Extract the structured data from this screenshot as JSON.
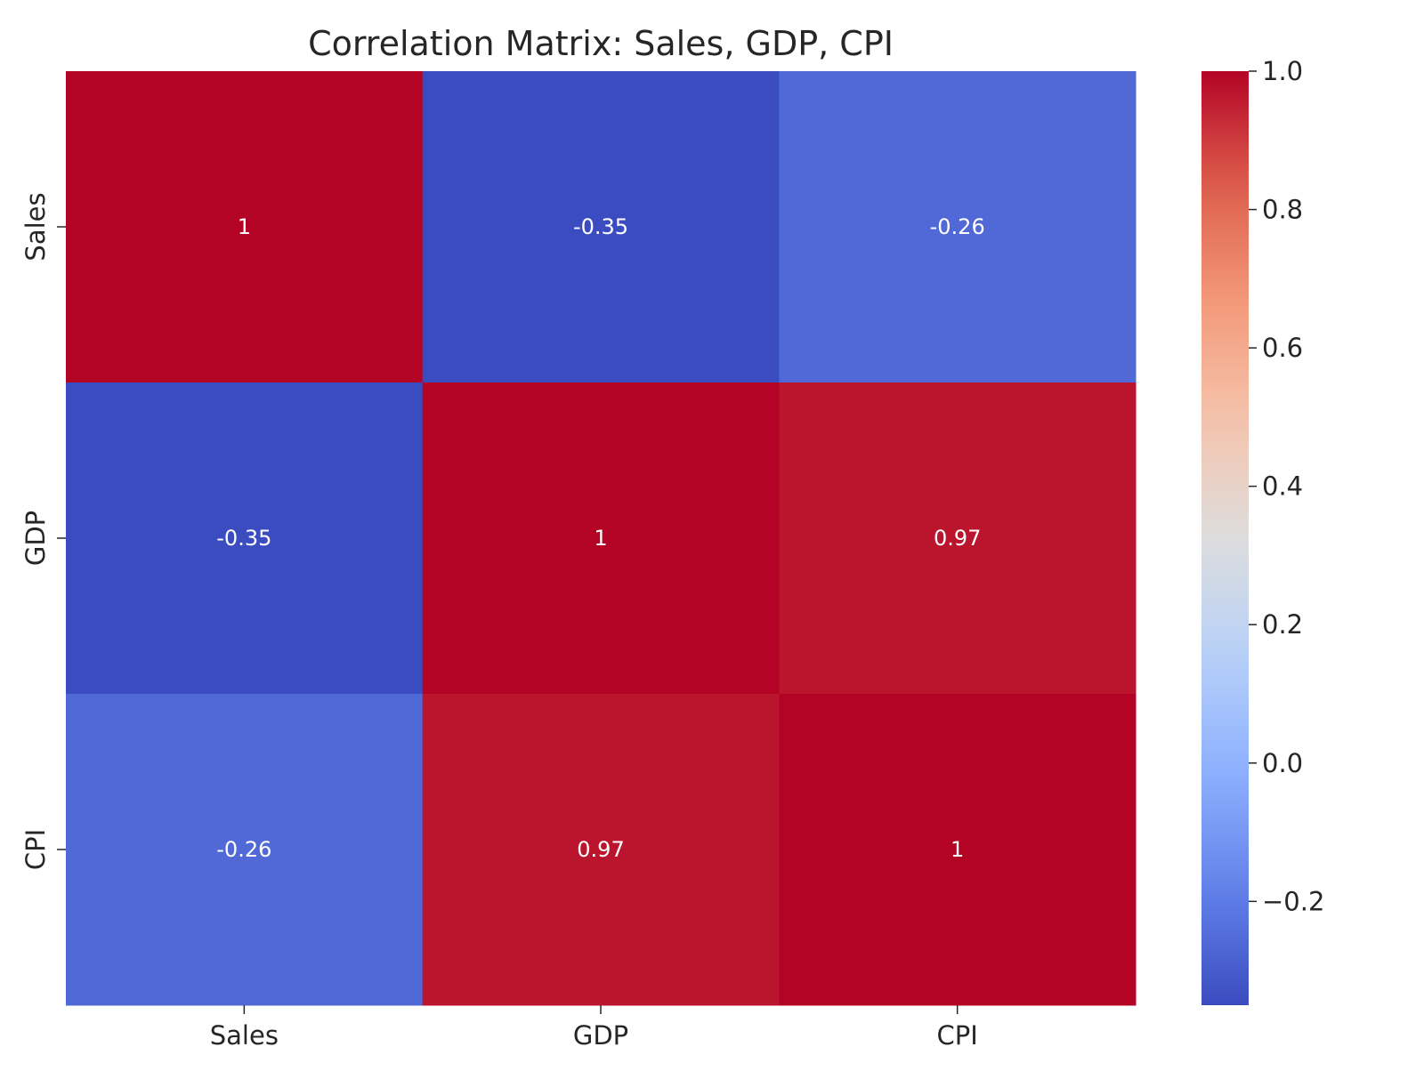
{
  "chart_data": {
    "type": "heatmap",
    "title": "Correlation Matrix: Sales, GDP, CPI",
    "x_categories": [
      "Sales",
      "GDP",
      "CPI"
    ],
    "y_categories": [
      "Sales",
      "GDP",
      "CPI"
    ],
    "values": [
      [
        1.0,
        -0.35,
        -0.26
      ],
      [
        -0.35,
        1.0,
        0.97
      ],
      [
        -0.26,
        0.97,
        1.0
      ]
    ],
    "cell_labels": [
      [
        "1",
        "-0.35",
        "-0.26"
      ],
      [
        "-0.35",
        "1",
        "0.97"
      ],
      [
        "-0.26",
        "0.97",
        "1"
      ]
    ],
    "colormap": "coolwarm",
    "colorbar": {
      "range": [
        -0.35,
        1.0
      ],
      "ticks": [
        -0.2,
        0.0,
        0.2,
        0.4,
        0.6,
        0.8,
        1.0
      ],
      "tick_labels": [
        "−0.2",
        "0.0",
        "0.2",
        "0.4",
        "0.6",
        "0.8",
        "1.0"
      ]
    },
    "grid": false,
    "legend": "colorbar-right"
  }
}
